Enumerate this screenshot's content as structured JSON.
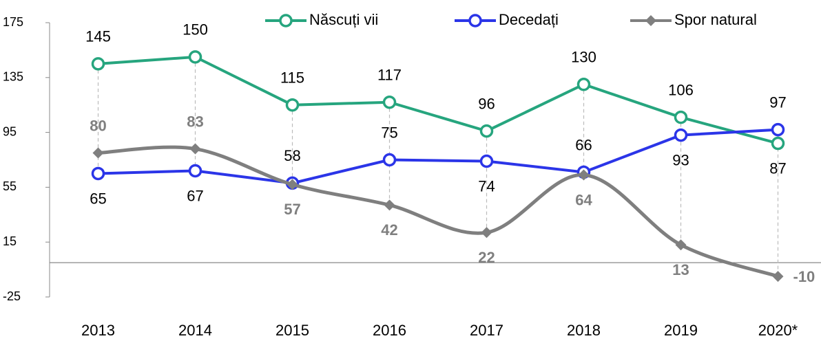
{
  "chart_data": {
    "type": "line",
    "categories": [
      "2013",
      "2014",
      "2015",
      "2016",
      "2017",
      "2018",
      "2019",
      "2020*"
    ],
    "series": [
      {
        "name": "Născuți vii",
        "color": "#26a57e",
        "values": [
          145,
          150,
          115,
          117,
          96,
          130,
          106,
          87
        ]
      },
      {
        "name": "Decedați",
        "color": "#2b35e8",
        "values": [
          65,
          67,
          58,
          75,
          74,
          66,
          93,
          97
        ]
      },
      {
        "name": "Spor natural",
        "color": "#7f7f7f",
        "values": [
          80,
          83,
          57,
          42,
          22,
          64,
          13,
          -10
        ]
      }
    ],
    "ylim": [
      -25,
      175
    ],
    "yticks": [
      -25,
      15,
      55,
      95,
      135,
      175
    ]
  }
}
